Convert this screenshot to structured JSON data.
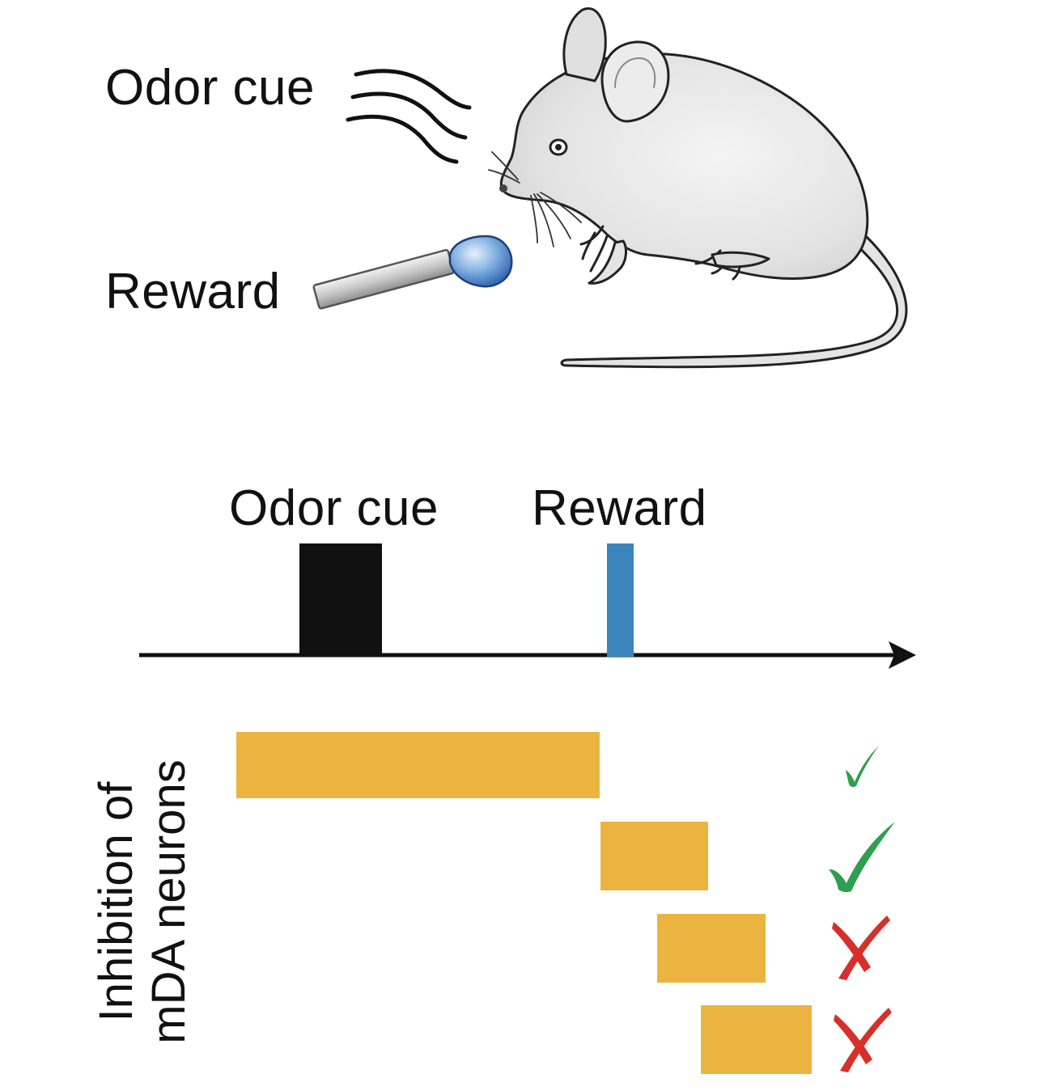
{
  "illustration": {
    "odor_label": "Odor cue",
    "reward_label": "Reward"
  },
  "timeline": {
    "odor_label": "Odor cue",
    "reward_label": "Reward"
  },
  "inhibition": {
    "ylabel_line1": "Inhibition of",
    "ylabel_line2": "mDA neurons",
    "rows": [
      {
        "result": "check"
      },
      {
        "result": "check"
      },
      {
        "result": "cross"
      },
      {
        "result": "cross"
      }
    ]
  },
  "colors": {
    "odor_block": "#111111",
    "reward_block": "#3a85bb",
    "inhibition_bar": "#ebb440",
    "check": "#2e9e4f",
    "cross": "#d6302a",
    "mouse_body": "#e6e6e6",
    "droplet": "#3f7fc7"
  }
}
